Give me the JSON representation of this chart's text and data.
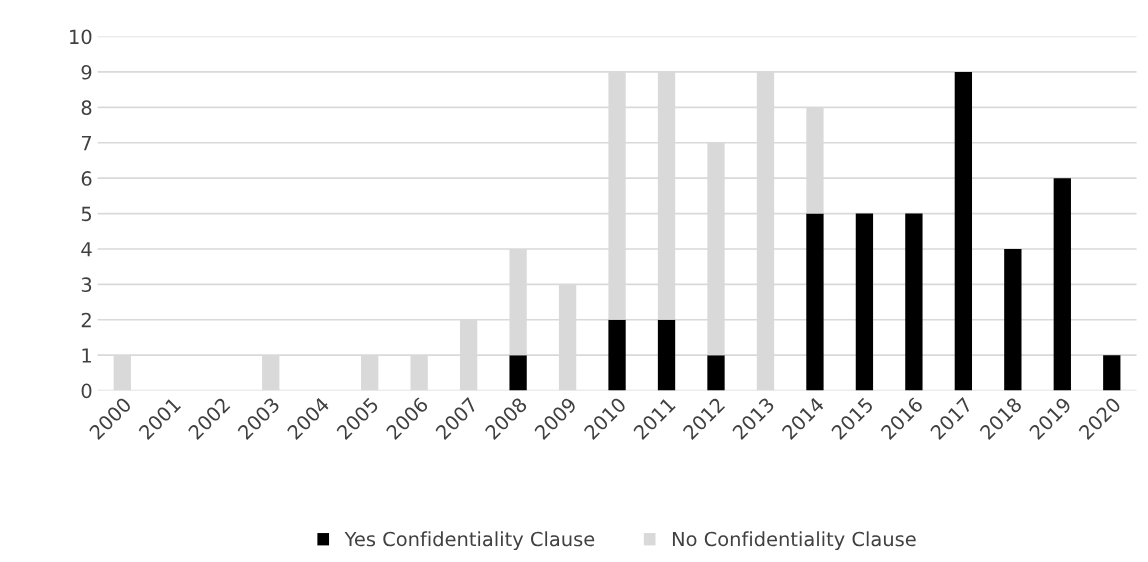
{
  "chart_data": {
    "type": "bar",
    "stacked": true,
    "categories": [
      "2000",
      "2001",
      "2002",
      "2003",
      "2004",
      "2005",
      "2006",
      "2007",
      "2008",
      "2009",
      "2010",
      "2011",
      "2012",
      "2013",
      "2014",
      "2015",
      "2016",
      "2017",
      "2018",
      "2019",
      "2020"
    ],
    "series": [
      {
        "name": "Yes Confidentiality Clause",
        "color": "#000000",
        "values": [
          0,
          0,
          0,
          0,
          0,
          0,
          0,
          0,
          1,
          0,
          2,
          2,
          1,
          0,
          5,
          5,
          5,
          9,
          4,
          6,
          1
        ]
      },
      {
        "name": "No Confidentiality Clause",
        "color": "#d9d9d9",
        "values": [
          1,
          0,
          0,
          1,
          0,
          1,
          1,
          2,
          3,
          3,
          7,
          7,
          6,
          9,
          3,
          0,
          0,
          0,
          0,
          0,
          0
        ]
      }
    ],
    "ylim": [
      0,
      10
    ],
    "yticks": [
      0,
      1,
      2,
      3,
      4,
      5,
      6,
      7,
      8,
      9,
      10
    ],
    "grid": "y",
    "legend": "bottom"
  }
}
